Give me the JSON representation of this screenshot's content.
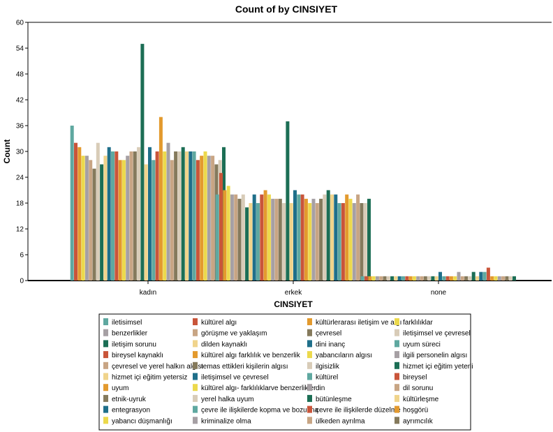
{
  "chart_data": {
    "type": "bar",
    "title": "Count of  by CINSIYET",
    "xlabel": "CINSIYET",
    "ylabel": "Count",
    "ylim": [
      0,
      60
    ],
    "yticks": [
      0,
      6,
      12,
      18,
      24,
      30,
      36,
      42,
      48,
      54,
      60
    ],
    "categories": [
      "kadın",
      "erkek",
      "none"
    ],
    "legend_position": "bottom",
    "series": [
      {
        "name": "iletisimsel",
        "color": "#5fa8a0",
        "values": [
          36,
          20,
          1
        ]
      },
      {
        "name": "kültürel algı",
        "color": "#c9553a",
        "values": [
          32,
          25,
          1
        ]
      },
      {
        "name": "kültürlerarası iletişim ve algı",
        "color": "#e39a2e",
        "values": [
          31,
          21,
          1
        ]
      },
      {
        "name": "farklılıklar",
        "color": "#ecd94c",
        "values": [
          29,
          22,
          1
        ]
      },
      {
        "name": "benzerlikler",
        "color": "#a6a0a4",
        "values": [
          29,
          20,
          1
        ]
      },
      {
        "name": "görüşme ve yaklaşım",
        "color": "#c8a584",
        "values": [
          28,
          20,
          1
        ]
      },
      {
        "name": "çevresel",
        "color": "#857a5c",
        "values": [
          26,
          19,
          1
        ]
      },
      {
        "name": "iletişimsel ve çevresel",
        "color": "#d8ccb8",
        "values": [
          32,
          20,
          1
        ]
      },
      {
        "name": "iletişim sorunu",
        "color": "#1c6e55",
        "values": [
          27,
          17,
          1
        ]
      },
      {
        "name": "dilden kaynaklı",
        "color": "#f0d48c",
        "values": [
          29,
          18,
          1
        ]
      },
      {
        "name": "dini inanç",
        "color": "#1f6f8a",
        "values": [
          31,
          20,
          1
        ]
      },
      {
        "name": "uyum süreci",
        "color": "#5fa8a0",
        "values": [
          30,
          18,
          1
        ]
      },
      {
        "name": "bireysel kaynaklı",
        "color": "#c9553a",
        "values": [
          30,
          20,
          1
        ]
      },
      {
        "name": "kültürel algı farklılık ve benzerlik",
        "color": "#e39a2e",
        "values": [
          28,
          21,
          1
        ]
      },
      {
        "name": "yabancıların algısı",
        "color": "#ecd94c",
        "values": [
          28,
          20,
          1
        ]
      },
      {
        "name": "ilgili personelin algısı",
        "color": "#a6a0a4",
        "values": [
          29,
          19,
          1
        ]
      },
      {
        "name": "çevresel ve yerel halkın algısı",
        "color": "#c8a584",
        "values": [
          30,
          19,
          1
        ]
      },
      {
        "name": "temas ettikleri kişilerin algısı",
        "color": "#857a5c",
        "values": [
          30,
          19,
          1
        ]
      },
      {
        "name": "ilgisizlik",
        "color": "#d8ccb8",
        "values": [
          31,
          18,
          1
        ]
      },
      {
        "name": "hizmet içi eğitim yeterli",
        "color": "#1c6e55",
        "values": [
          55,
          37,
          1
        ]
      },
      {
        "name": "hizmet içi eğitim yetersiz",
        "color": "#f0d48c",
        "values": [
          27,
          18,
          1
        ]
      },
      {
        "name": "iletişimsel ve çevresel",
        "color": "#1f6f8a",
        "values": [
          31,
          21,
          2
        ]
      },
      {
        "name": "kültürel",
        "color": "#5fa8a0",
        "values": [
          28,
          20,
          1
        ]
      },
      {
        "name": "bireysel",
        "color": "#c9553a",
        "values": [
          30,
          20,
          1
        ]
      },
      {
        "name": "uyum",
        "color": "#e39a2e",
        "values": [
          38,
          19,
          1
        ]
      },
      {
        "name": "kültürel algı- farklılıklarve benzerlikler",
        "color": "#ecd94c",
        "values": [
          30,
          18,
          1
        ]
      },
      {
        "name": "din",
        "color": "#a6a0a4",
        "values": [
          32,
          19,
          2
        ]
      },
      {
        "name": "dil sorunu",
        "color": "#c8a584",
        "values": [
          28,
          18,
          1
        ]
      },
      {
        "name": "etnik-uyruk",
        "color": "#857a5c",
        "values": [
          30,
          19,
          1
        ]
      },
      {
        "name": "yerel halka uyum",
        "color": "#d8ccb8",
        "values": [
          30,
          20,
          1
        ]
      },
      {
        "name": "bütünleşme",
        "color": "#1c6e55",
        "values": [
          31,
          21,
          2
        ]
      },
      {
        "name": "kültürleşme",
        "color": "#f0d48c",
        "values": [
          30,
          20,
          1
        ]
      },
      {
        "name": "entegrasyon",
        "color": "#1f6f8a",
        "values": [
          30,
          20,
          2
        ]
      },
      {
        "name": "çevre ile ilişkilerde kopma ve bozulma",
        "color": "#5fa8a0",
        "values": [
          30,
          18,
          2
        ]
      },
      {
        "name": "çevre ile ilişkilerde düzelme",
        "color": "#c9553a",
        "values": [
          28,
          18,
          3
        ]
      },
      {
        "name": "hoşgörü",
        "color": "#e39a2e",
        "values": [
          29,
          20,
          1
        ]
      },
      {
        "name": "yabancı düşmanlığı",
        "color": "#ecd94c",
        "values": [
          30,
          19,
          1
        ]
      },
      {
        "name": "kriminalize olma",
        "color": "#a6a0a4",
        "values": [
          29,
          18,
          1
        ]
      },
      {
        "name": "ülkeden ayrılma",
        "color": "#c8a584",
        "values": [
          29,
          20,
          1
        ]
      },
      {
        "name": "ayrımcılık",
        "color": "#857a5c",
        "values": [
          27,
          18,
          1
        ]
      },
      {
        "name": "",
        "color": "#d8ccb8",
        "values": [
          28,
          18,
          1
        ]
      },
      {
        "name": "",
        "color": "#1c6e55",
        "values": [
          31,
          19,
          1
        ]
      }
    ]
  }
}
